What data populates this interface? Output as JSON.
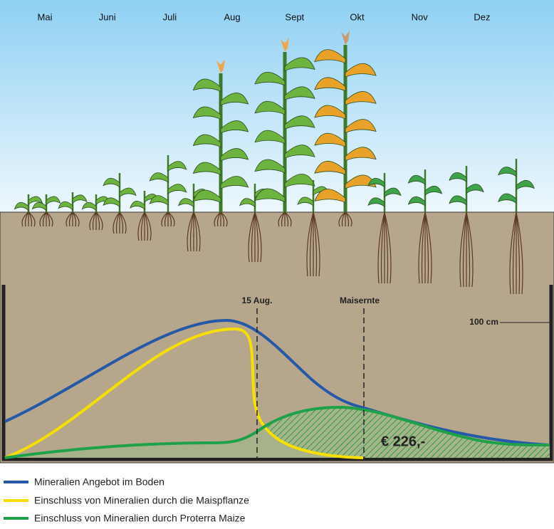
{
  "months": [
    "Mai",
    "Juni",
    "Juli",
    "Aug",
    "Sept",
    "Okt",
    "Nov",
    "Dez"
  ],
  "markers": {
    "august": "15 Aug.",
    "harvest": "Maisernte"
  },
  "depth_label": "100 cm",
  "savings": "€ 226,-",
  "legend": [
    "Mineralien Angebot im Boden",
    "Einschluss von Mineralien durch die Maispflanze",
    "Einschluss von Mineralien durch Proterra Maize"
  ]
}
